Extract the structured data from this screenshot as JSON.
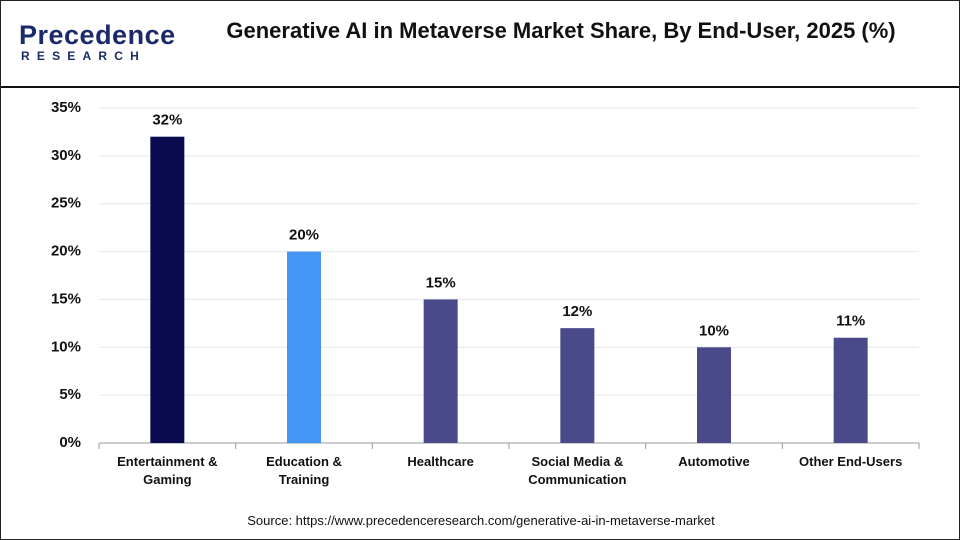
{
  "logo": {
    "name": "Precedence",
    "tagline": "RESEARCH"
  },
  "source": "Source: https://www.precedenceresearch.com/generative-ai-in-metaverse-market",
  "chart_data": {
    "type": "bar",
    "title": "Generative AI in Metaverse Market Share, By End-User, 2025 (%)",
    "categories": [
      "Entertainment & Gaming",
      "Education & Training",
      "Healthcare",
      "Social Media & Communication",
      "Automotive",
      "Other End-Users"
    ],
    "values": [
      32,
      20,
      15,
      12,
      10,
      11
    ],
    "value_labels": [
      "32%",
      "20%",
      "15%",
      "12%",
      "10%",
      "11%"
    ],
    "colors": [
      "#0a0a4f",
      "#4595f5",
      "#4a4a8a",
      "#4a4a8a",
      "#4a4a8a",
      "#4a4a8a"
    ],
    "ylim": [
      0,
      35
    ],
    "yticks": [
      {
        "value": 0,
        "label": "0%"
      },
      {
        "value": 5,
        "label": "5%"
      },
      {
        "value": 10,
        "label": "10%"
      },
      {
        "value": 15,
        "label": "15%"
      },
      {
        "value": 20,
        "label": "20%"
      },
      {
        "value": 25,
        "label": "25%"
      },
      {
        "value": 30,
        "label": "30%"
      },
      {
        "value": 35,
        "label": "35%"
      }
    ],
    "grid": true
  }
}
